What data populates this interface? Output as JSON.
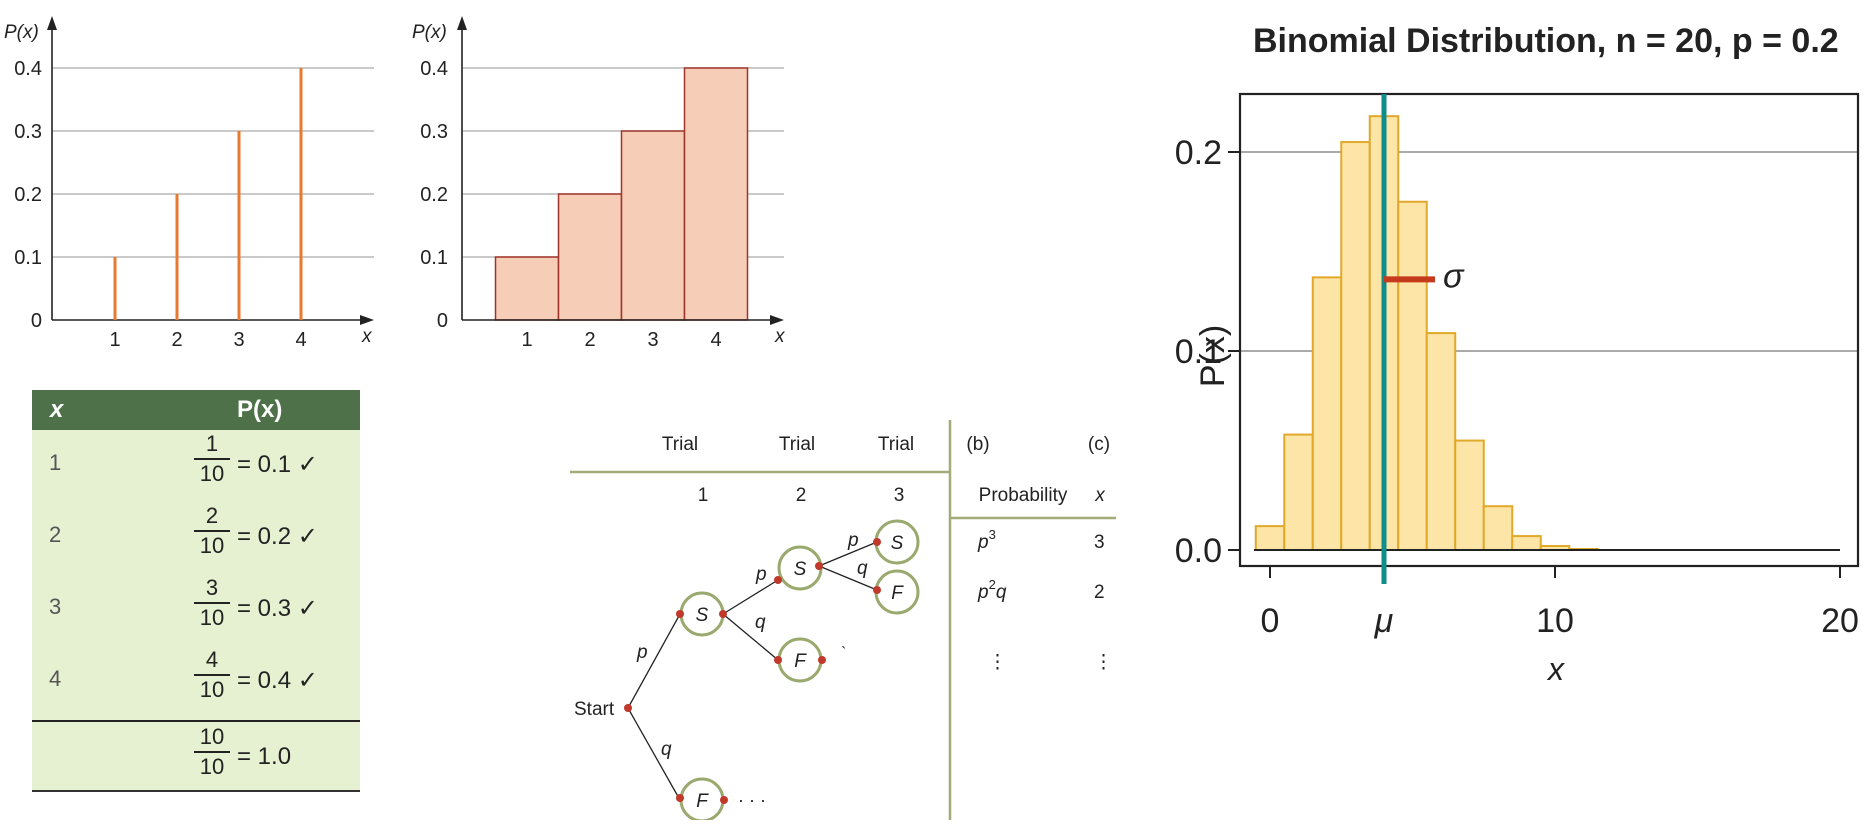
{
  "chart_data": [
    {
      "type": "bar",
      "style": "spike",
      "x": [
        1,
        2,
        3,
        4
      ],
      "values": [
        0.1,
        0.2,
        0.3,
        0.4
      ],
      "xlabel": "x",
      "ylabel": "P(x)",
      "yticks": [
        "0",
        "0.1",
        "0.2",
        "0.3",
        "0.4"
      ],
      "xticks": [
        "1",
        "2",
        "3",
        "4"
      ],
      "ylim": [
        0,
        0.4
      ],
      "grid": true,
      "color": "#e57a30"
    },
    {
      "type": "bar",
      "style": "histogram",
      "x": [
        1,
        2,
        3,
        4
      ],
      "values": [
        0.1,
        0.2,
        0.3,
        0.4
      ],
      "xlabel": "x",
      "ylabel": "P(x)",
      "yticks": [
        "0",
        "0.1",
        "0.2",
        "0.3",
        "0.4"
      ],
      "xticks": [
        "1",
        "2",
        "3",
        "4"
      ],
      "ylim": [
        0,
        0.4
      ],
      "grid": true,
      "fill": "#f6cdb6",
      "stroke": "#a0332a"
    },
    {
      "type": "bar",
      "style": "histogram",
      "title": "Binomial Distribution, n = 20, p = 0.2",
      "x": [
        0,
        1,
        2,
        3,
        4,
        5,
        6,
        7,
        8,
        9,
        10,
        11,
        12,
        13,
        14,
        15,
        16,
        17,
        18,
        19,
        20
      ],
      "values": [
        0.012,
        0.058,
        0.137,
        0.205,
        0.218,
        0.175,
        0.109,
        0.055,
        0.022,
        0.007,
        0.002,
        0.0005,
        0,
        0,
        0,
        0,
        0,
        0,
        0,
        0,
        0
      ],
      "xlabel": "x",
      "ylabel": "P(x)",
      "yticks": [
        "0.0",
        "0.1",
        "0.2"
      ],
      "xticks": [
        "0",
        "10",
        "20"
      ],
      "ylim": [
        0,
        0.2
      ],
      "grid": true,
      "mean_label": "μ",
      "sigma_label": "σ",
      "mean": 4,
      "sd": 1.79,
      "fill": "#fce5a6",
      "stroke": "#e2a82a",
      "mean_color": "#0f8d8a",
      "sigma_color": "#c53a1d"
    }
  ],
  "table": {
    "col_x": "x",
    "col_p": "P(x)",
    "rows": [
      {
        "x": "1",
        "num": "1",
        "den": "10",
        "eq": "= 0.1 ✓"
      },
      {
        "x": "2",
        "num": "2",
        "den": "10",
        "eq": "= 0.2 ✓"
      },
      {
        "x": "3",
        "num": "3",
        "den": "10",
        "eq": "= 0.3 ✓"
      },
      {
        "x": "4",
        "num": "4",
        "den": "10",
        "eq": "= 0.4 ✓"
      }
    ],
    "total": {
      "num": "10",
      "den": "10",
      "eq": "= 1.0"
    }
  },
  "tree": {
    "col_headers": [
      "Trial",
      "Trial",
      "Trial"
    ],
    "col_numbers": [
      "1",
      "2",
      "3"
    ],
    "b_header": "(b)",
    "c_header": "(c)",
    "prob_header": "Probability",
    "x_header": "x",
    "start": "Start",
    "S": "S",
    "F": "F",
    "p": "p",
    "q": "q",
    "dots": "· · ·",
    "backtick": "`",
    "vdots": "⋮",
    "p_letter": "p",
    "q_letter": "q",
    "exp3": "3",
    "exp2": "2",
    "x3": "3",
    "x2": "2",
    "line_color": "#a3ac78",
    "node_color": "#9aa96e",
    "dot_color": "#c0392b"
  }
}
